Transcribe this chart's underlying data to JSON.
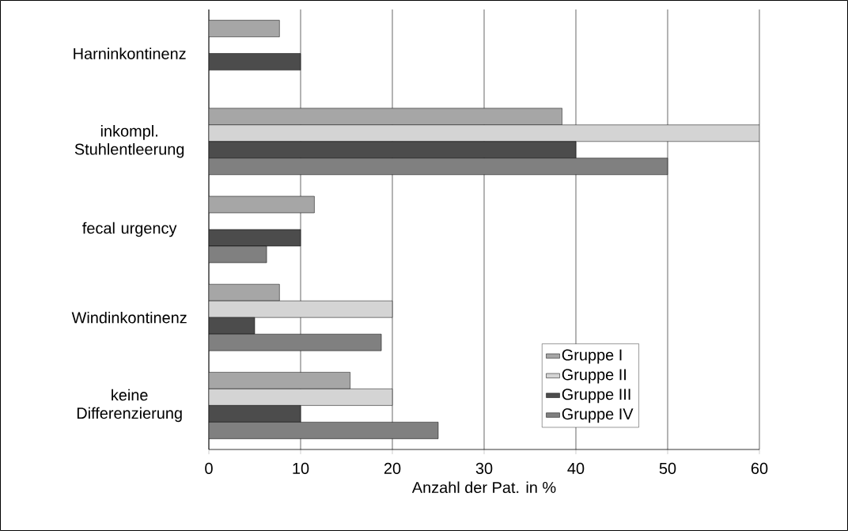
{
  "chart_data": {
    "type": "bar",
    "orientation": "horizontal",
    "xlabel": "Anzahl der Pat. in %",
    "categories": [
      "Harninkontinenz",
      "inkompl. Stuhlentleerung",
      "fecal urgency",
      "Windinkontinenz",
      "keine Differenzierung"
    ],
    "series": [
      {
        "name": "Gruppe I",
        "color": "#a6a6a6",
        "values": [
          7.7,
          38.5,
          11.5,
          7.7,
          15.4
        ]
      },
      {
        "name": "Gruppe II",
        "color": "#d4d4d4",
        "values": [
          null,
          60,
          null,
          20,
          20
        ]
      },
      {
        "name": "Gruppe III",
        "color": "#4c4c4c",
        "values": [
          10,
          40,
          10,
          5,
          10
        ]
      },
      {
        "name": "Gruppe IV",
        "color": "#808080",
        "values": [
          null,
          50,
          6.3,
          18.8,
          25
        ]
      }
    ],
    "xlim": [
      0,
      60
    ],
    "xticks": [
      0,
      10,
      20,
      30,
      40,
      50,
      60
    ],
    "grid": "x",
    "legend": "bottom right"
  }
}
